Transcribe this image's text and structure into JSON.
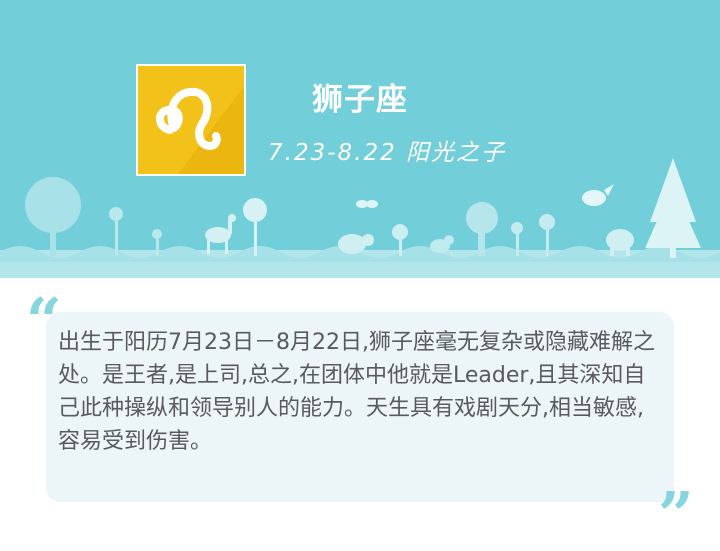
{
  "header": {
    "title": "狮子座",
    "date_motto": "7.23-8.22 阳光之子",
    "background_color": "#72ced8"
  },
  "sign_icon": {
    "name": "leo-icon",
    "glyph": "♌",
    "color": "#f3c21a"
  },
  "description": {
    "text": "出生于阳历7月23日－8月22日,狮子座毫无复杂或隐藏难解之处。是王者,是上司,总之,在团体中他就是Leader,且其深知自己此种操纵和领导别人的能力。天生具有戏剧天分,相当敏感,容易受到伤害。",
    "open_quote": "“",
    "close_quote": "”"
  }
}
